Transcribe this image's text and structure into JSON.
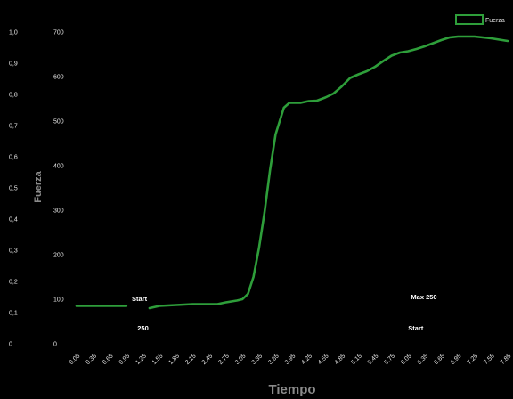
{
  "chart_data": {
    "type": "line",
    "xlabel": "Tiempo",
    "ylabel": "Fuerza",
    "x": [
      "0,05",
      "0,35",
      "0,65",
      "0,95",
      "1,25",
      "1,55",
      "1,85",
      "2,15",
      "2,45",
      "2,75",
      "3,05",
      "3,35",
      "3,65",
      "3,95",
      "4,25",
      "4,55",
      "4,85",
      "5,15",
      "5,45",
      "5,75",
      "6,05",
      "6,35",
      "6,65",
      "6,95",
      "7,25",
      "7,55",
      "7,85"
    ],
    "y_left_ticks": [
      "0",
      "0,1",
      "0,2",
      "0,3",
      "0,4",
      "0,5",
      "0,6",
      "0,7",
      "0,8",
      "0,9",
      "1,0"
    ],
    "y_right_ticks": [
      "0",
      "100",
      "200",
      "300",
      "400",
      "500",
      "600",
      "700"
    ],
    "ylim": [
      0,
      700
    ],
    "legend": {
      "label": "Fuerza",
      "position": "top-right"
    },
    "series": [
      {
        "name": "Fuerza",
        "color": "#2e9e3a",
        "segments": [
          [
            [
              0.05,
              85
            ],
            [
              0.95,
              85
            ]
          ],
          [
            [
              1.37,
              80
            ],
            [
              1.55,
              85
            ],
            [
              1.85,
              87
            ],
            [
              2.15,
              89
            ],
            [
              2.45,
              89
            ],
            [
              2.6,
              89
            ],
            [
              2.75,
              93
            ],
            [
              2.95,
              97
            ],
            [
              3.05,
              100
            ],
            [
              3.15,
              112
            ],
            [
              3.25,
              150
            ],
            [
              3.35,
              215
            ],
            [
              3.45,
              295
            ],
            [
              3.55,
              390
            ],
            [
              3.65,
              470
            ],
            [
              3.8,
              530
            ],
            [
              3.9,
              541
            ],
            [
              4.1,
              541
            ],
            [
              4.25,
              545
            ],
            [
              4.4,
              546
            ],
            [
              4.55,
              553
            ],
            [
              4.7,
              562
            ],
            [
              4.85,
              578
            ],
            [
              5.0,
              597
            ],
            [
              5.15,
              605
            ],
            [
              5.3,
              612
            ],
            [
              5.45,
              622
            ],
            [
              5.6,
              635
            ],
            [
              5.75,
              647
            ],
            [
              5.9,
              654
            ],
            [
              6.05,
              657
            ],
            [
              6.2,
              662
            ],
            [
              6.35,
              668
            ],
            [
              6.5,
              675
            ],
            [
              6.65,
              682
            ],
            [
              6.8,
              688
            ],
            [
              6.95,
              690
            ],
            [
              7.25,
              690
            ],
            [
              7.55,
              686
            ],
            [
              7.85,
              680
            ]
          ]
        ]
      }
    ],
    "annotations": [
      {
        "text": "Start",
        "x": 1.05,
        "y": 96
      },
      {
        "text": "250",
        "x": 1.15,
        "y": 30
      },
      {
        "text": "Max 250",
        "x": 6.1,
        "y": 100
      },
      {
        "text": "Start",
        "x": 6.05,
        "y": 30
      }
    ]
  }
}
